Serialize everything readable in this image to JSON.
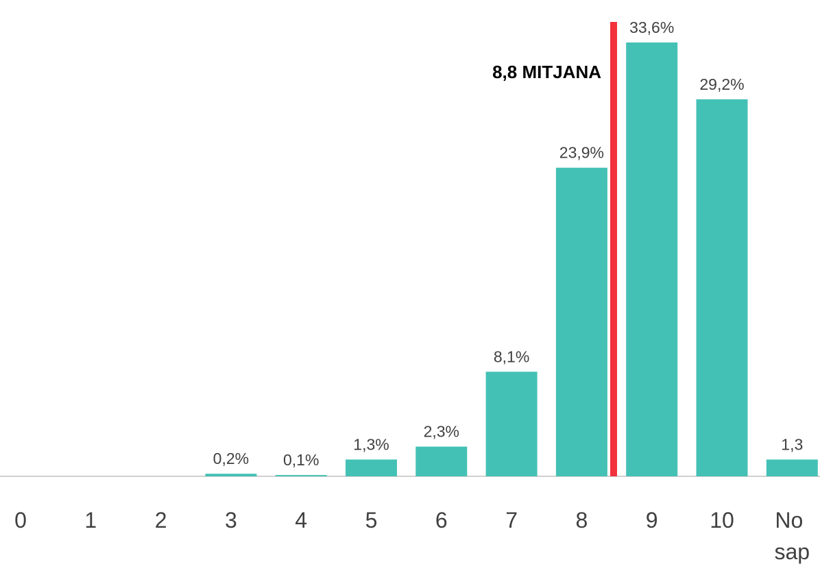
{
  "chart_data": {
    "type": "bar",
    "categories": [
      "0",
      "1",
      "2",
      "3",
      "4",
      "5",
      "6",
      "7",
      "8",
      "9",
      "10",
      "No sap"
    ],
    "values": [
      null,
      null,
      null,
      0.2,
      0.1,
      1.3,
      2.3,
      8.1,
      23.9,
      33.6,
      29.2,
      1.3
    ],
    "value_labels": [
      null,
      null,
      null,
      "0,2%",
      "0,1%",
      "1,3%",
      "2,3%",
      "8,1%",
      "23,9%",
      "33,6%",
      "29,2%",
      "1,3"
    ],
    "color": "#44c1b5",
    "annotation": "8,8 MITJANA"
  }
}
